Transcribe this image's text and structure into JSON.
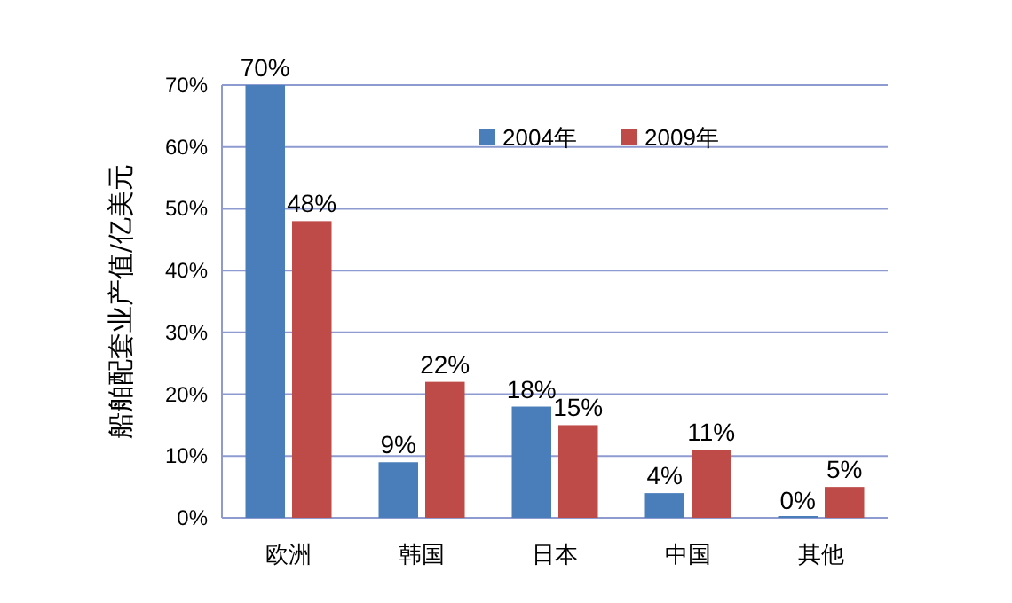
{
  "chart_data": {
    "type": "bar",
    "ylabel": "船舶配套业产值/亿美元",
    "categories": [
      "欧洲",
      "韩国",
      "日本",
      "中国",
      "其他"
    ],
    "series": [
      {
        "name": "2004年",
        "color": "#4a7ebb",
        "values": [
          70,
          9,
          18,
          4,
          0
        ],
        "value_labels": [
          "70%",
          "9%",
          "18%",
          "4%",
          "0%"
        ]
      },
      {
        "name": "2009年",
        "color": "#be4b48",
        "values": [
          48,
          22,
          15,
          11,
          5
        ],
        "value_labels": [
          "48%",
          "22%",
          "15%",
          "11%",
          "5%"
        ]
      }
    ],
    "ylim": [
      0,
      70
    ],
    "yticks": [
      {
        "value": 0,
        "label": "0%"
      },
      {
        "value": 10,
        "label": "10%"
      },
      {
        "value": 20,
        "label": "20%"
      },
      {
        "value": 30,
        "label": "30%"
      },
      {
        "value": 40,
        "label": "40%"
      },
      {
        "value": 50,
        "label": "50%"
      },
      {
        "value": 60,
        "label": "60%"
      },
      {
        "value": 70,
        "label": "70%"
      }
    ],
    "grid": "y",
    "legend": "top"
  }
}
